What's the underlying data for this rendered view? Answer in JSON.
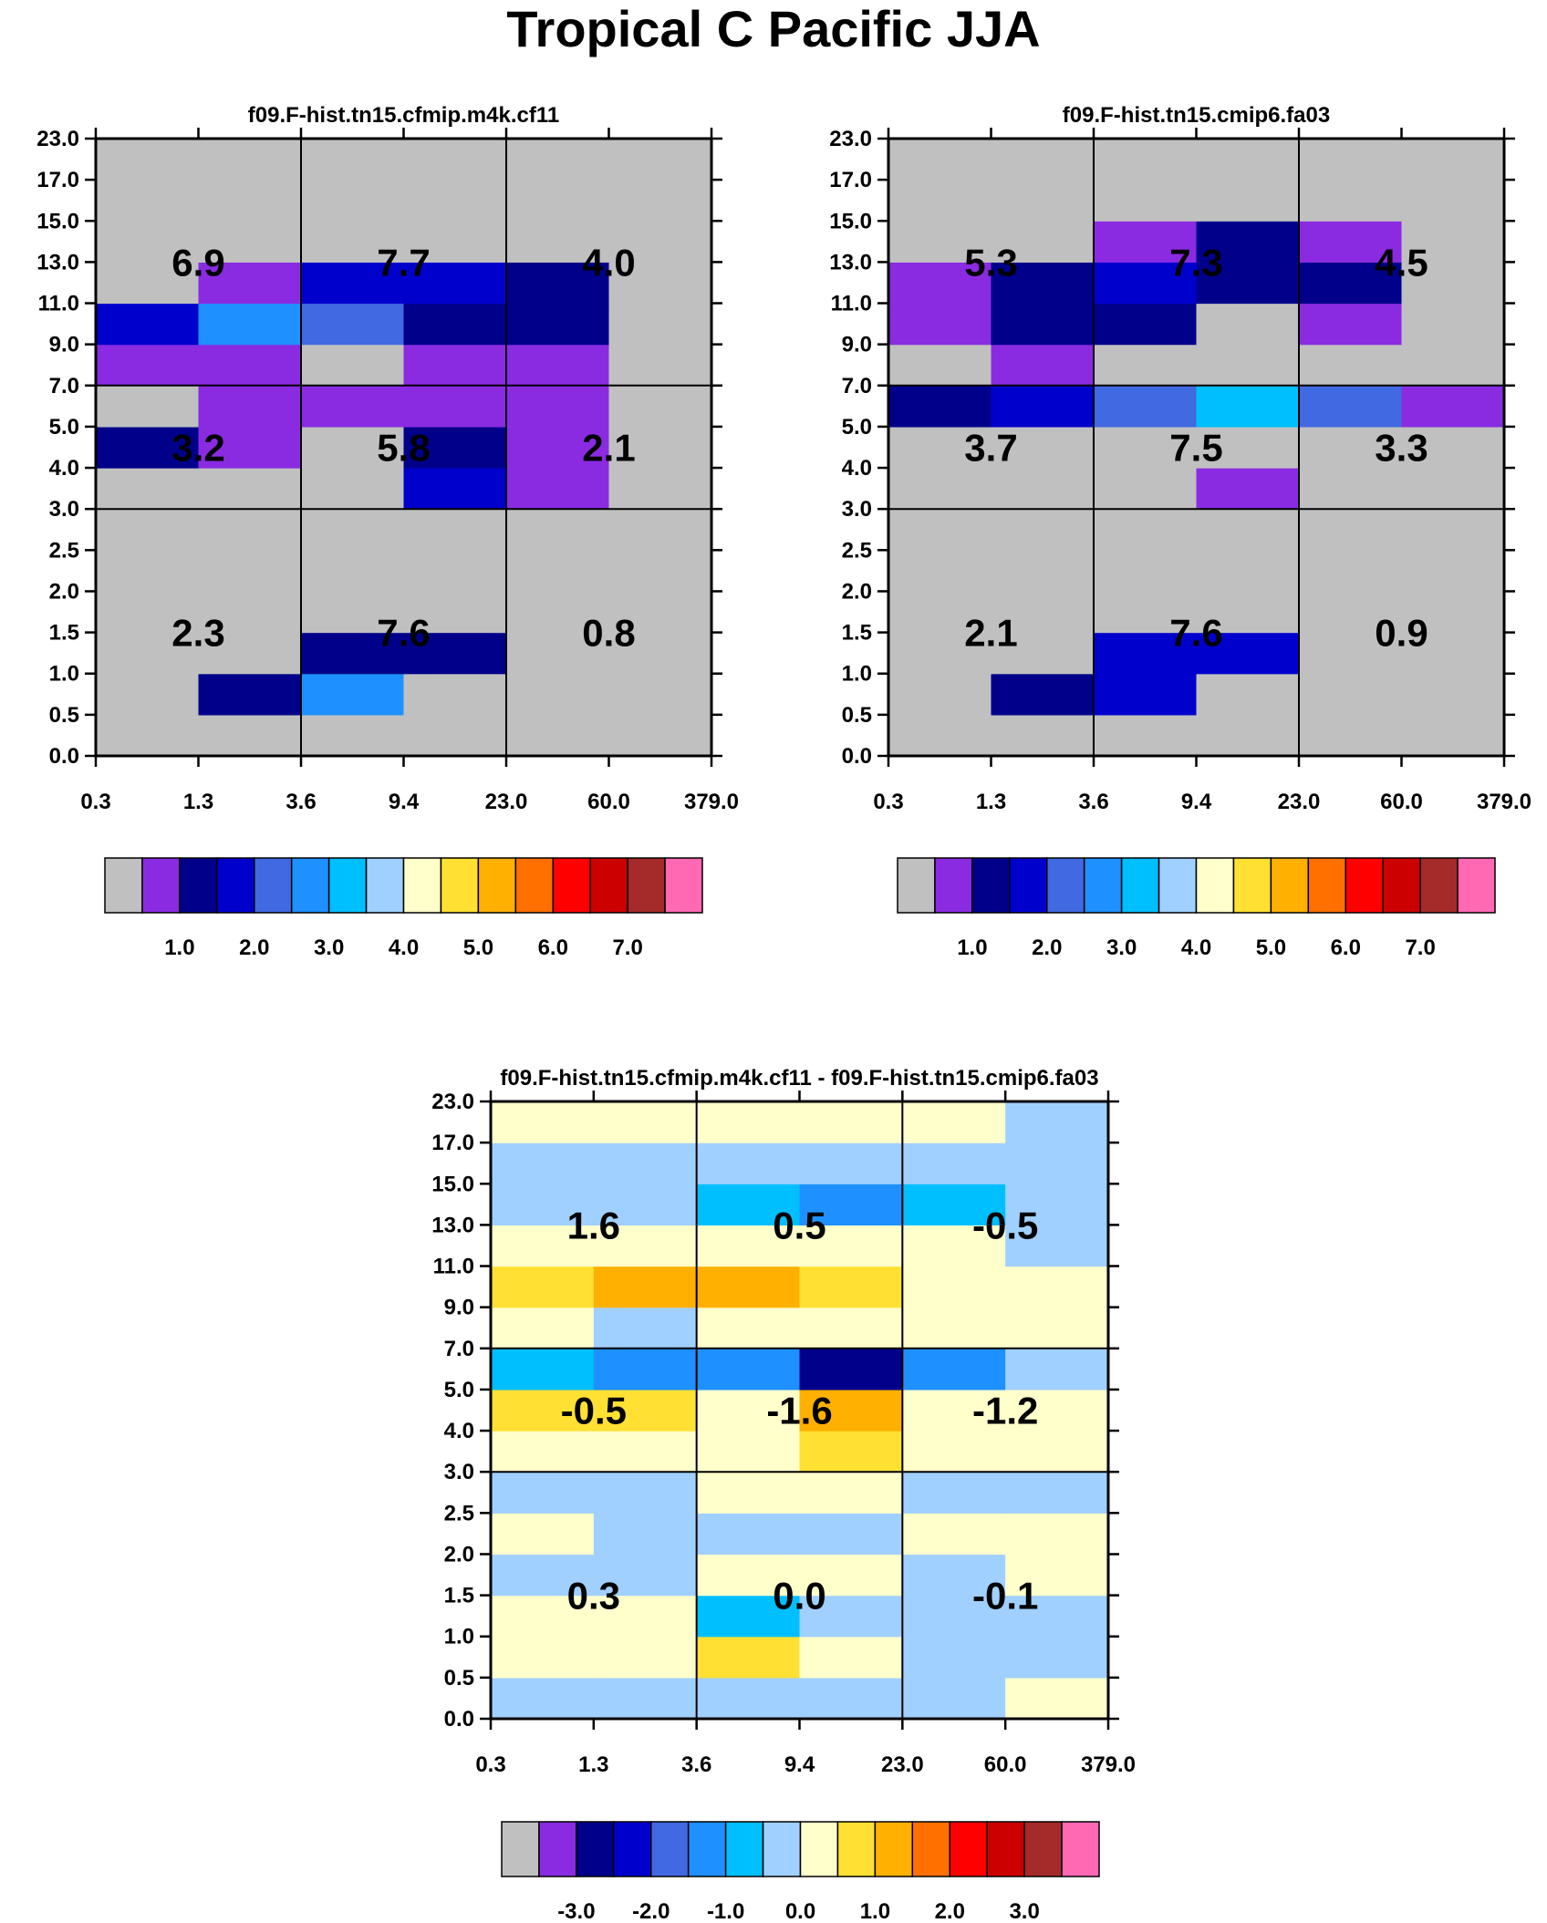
{
  "figure": {
    "title": "Tropical C Pacific JJA"
  },
  "colors": {
    "absolute_palette": [
      "#c0c0c0",
      "#8a2be2",
      "#00008b",
      "#0000cd",
      "#4169e1",
      "#1e90ff",
      "#00bfff",
      "#a0d0ff",
      "#ffffcc",
      "#ffe033",
      "#ffb000",
      "#ff7000",
      "#ff0000",
      "#cc0000",
      "#a52a2a",
      "#ff69b4"
    ],
    "difference_palette": [
      "#c0c0c0",
      "#8a2be2",
      "#00008b",
      "#0000cd",
      "#4169e1",
      "#1e90ff",
      "#00bfff",
      "#a0d0ff",
      "#ffffcc",
      "#ffe033",
      "#ffb000",
      "#ff7000",
      "#ff0000",
      "#cc0000",
      "#a52a2a",
      "#ff69b4"
    ]
  },
  "chart_data": [
    {
      "type": "heatmap",
      "title": "f09.F-hist.tn15.cfmip.m4k.cf11",
      "x_tick_labels": [
        "0.3",
        "1.3",
        "3.6",
        "9.4",
        "23.0",
        "60.0",
        "379.0"
      ],
      "y_tick_labels": [
        "0.0",
        "0.5",
        "1.0",
        "1.5",
        "2.0",
        "2.5",
        "3.0",
        "4.0",
        "5.0",
        "7.0",
        "9.0",
        "11.0",
        "13.0",
        "15.0",
        "17.0",
        "23.0"
      ],
      "cell_values": [
        [
          0,
          0,
          0,
          0,
          0,
          0
        ],
        [
          0,
          2,
          5,
          0,
          0,
          0
        ],
        [
          0,
          0,
          2,
          2,
          0,
          0
        ],
        [
          0,
          0,
          0,
          0,
          0,
          0
        ],
        [
          0,
          0,
          0,
          0,
          0,
          0
        ],
        [
          0,
          0,
          0,
          0,
          0,
          0
        ],
        [
          0,
          0,
          0,
          3,
          1,
          0
        ],
        [
          2,
          1,
          0,
          2,
          1,
          0
        ],
        [
          0,
          1,
          1,
          1,
          1,
          0
        ],
        [
          1,
          1,
          0,
          1,
          1,
          0
        ],
        [
          3,
          5,
          4,
          2,
          2,
          0
        ],
        [
          0,
          1,
          3,
          3,
          2,
          0
        ],
        [
          0,
          0,
          0,
          0,
          0,
          0
        ],
        [
          0,
          0,
          0,
          0,
          0,
          0
        ],
        [
          0,
          0,
          0,
          0,
          0,
          0
        ]
      ],
      "group_values": [
        [
          "2.3",
          "7.6",
          "0.8"
        ],
        [
          "3.2",
          "5.8",
          "2.1"
        ],
        [
          "6.9",
          "7.7",
          "4.0"
        ]
      ],
      "colorbar_labels": [
        "1.0",
        "2.0",
        "3.0",
        "4.0",
        "5.0",
        "6.0",
        "7.0"
      ]
    },
    {
      "type": "heatmap",
      "title": "f09.F-hist.tn15.cmip6.fa03",
      "x_tick_labels": [
        "0.3",
        "1.3",
        "3.6",
        "9.4",
        "23.0",
        "60.0",
        "379.0"
      ],
      "y_tick_labels": [
        "0.0",
        "0.5",
        "1.0",
        "1.5",
        "2.0",
        "2.5",
        "3.0",
        "4.0",
        "5.0",
        "7.0",
        "9.0",
        "11.0",
        "13.0",
        "15.0",
        "17.0",
        "23.0"
      ],
      "cell_values": [
        [
          0,
          0,
          0,
          0,
          0,
          0
        ],
        [
          0,
          2,
          3,
          0,
          0,
          0
        ],
        [
          0,
          0,
          3,
          3,
          0,
          0
        ],
        [
          0,
          0,
          0,
          0,
          0,
          0
        ],
        [
          0,
          0,
          0,
          0,
          0,
          0
        ],
        [
          0,
          0,
          0,
          0,
          0,
          0
        ],
        [
          0,
          0,
          0,
          1,
          0,
          0
        ],
        [
          0,
          0,
          0,
          0,
          0,
          0
        ],
        [
          2,
          3,
          4,
          6,
          4,
          1
        ],
        [
          0,
          1,
          0,
          0,
          0,
          0
        ],
        [
          1,
          2,
          2,
          0,
          1,
          0
        ],
        [
          1,
          2,
          3,
          2,
          2,
          0
        ],
        [
          0,
          0,
          1,
          2,
          1,
          0
        ],
        [
          0,
          0,
          0,
          0,
          0,
          0
        ],
        [
          0,
          0,
          0,
          0,
          0,
          0
        ]
      ],
      "group_values": [
        [
          "2.1",
          "7.6",
          "0.9"
        ],
        [
          "3.7",
          "7.5",
          "3.3"
        ],
        [
          "5.3",
          "7.3",
          "4.5"
        ]
      ],
      "colorbar_labels": [
        "1.0",
        "2.0",
        "3.0",
        "4.0",
        "5.0",
        "6.0",
        "7.0"
      ]
    },
    {
      "type": "heatmap",
      "title": "f09.F-hist.tn15.cfmip.m4k.cf11 - f09.F-hist.tn15.cmip6.fa03",
      "x_tick_labels": [
        "0.3",
        "1.3",
        "3.6",
        "9.4",
        "23.0",
        "60.0",
        "379.0"
      ],
      "y_tick_labels": [
        "0.0",
        "0.5",
        "1.0",
        "1.5",
        "2.0",
        "2.5",
        "3.0",
        "4.0",
        "5.0",
        "7.0",
        "9.0",
        "11.0",
        "13.0",
        "15.0",
        "17.0",
        "23.0"
      ],
      "cell_values": [
        [
          7,
          7,
          7,
          7,
          7,
          8
        ],
        [
          8,
          8,
          9,
          8,
          7,
          7
        ],
        [
          8,
          8,
          6,
          7,
          7,
          7
        ],
        [
          7,
          7,
          8,
          8,
          7,
          8
        ],
        [
          8,
          7,
          7,
          7,
          8,
          8
        ],
        [
          7,
          7,
          8,
          8,
          7,
          7
        ],
        [
          8,
          8,
          8,
          9,
          8,
          8
        ],
        [
          9,
          9,
          8,
          10,
          8,
          8
        ],
        [
          6,
          5,
          5,
          2,
          5,
          7
        ],
        [
          8,
          7,
          8,
          8,
          8,
          8
        ],
        [
          9,
          10,
          10,
          9,
          8,
          8
        ],
        [
          8,
          8,
          8,
          8,
          8,
          7
        ],
        [
          7,
          7,
          6,
          5,
          6,
          7
        ],
        [
          7,
          7,
          7,
          7,
          7,
          7
        ],
        [
          8,
          8,
          8,
          8,
          8,
          7
        ]
      ],
      "group_values": [
        [
          "0.3",
          "0.0",
          "-0.1"
        ],
        [
          "-0.5",
          "-1.6",
          "-1.2"
        ],
        [
          "1.6",
          "0.5",
          "-0.5"
        ]
      ],
      "colorbar_labels": [
        "-3.0",
        "-2.0",
        "-1.0",
        "0.0",
        "1.0",
        "2.0",
        "3.0"
      ]
    }
  ]
}
